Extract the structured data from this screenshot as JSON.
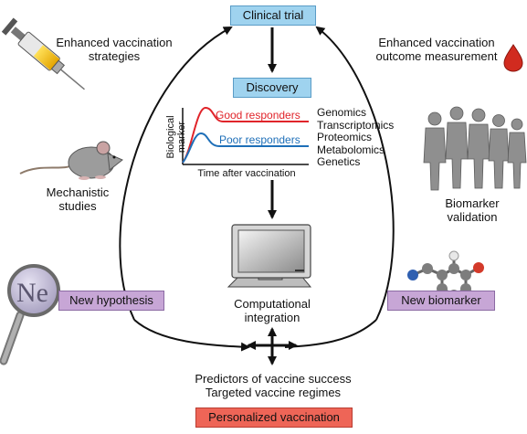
{
  "boxes": {
    "clinical_trial": "Clinical trial",
    "discovery": "Discovery",
    "new_hypothesis": "New hypothesis",
    "new_biomarker": "New biomarker",
    "personalized": "Personalized vaccination"
  },
  "labels": {
    "enhanced_strategies_1": "Enhanced vaccination",
    "enhanced_strategies_2": "strategies",
    "enhanced_outcome_1": "Enhanced vaccination",
    "enhanced_outcome_2": "outcome measurement",
    "mechanistic_1": "Mechanistic",
    "mechanistic_2": "studies",
    "biomarker_val_1": "Biomarker",
    "biomarker_val_2": "validation",
    "computational_1": "Computational",
    "computational_2": "integration",
    "predictors_1": "Predictors of vaccine success",
    "predictors_2": "Targeted vaccine regimes"
  },
  "omics": [
    "Genomics",
    "Transcriptomics",
    "Proteomics",
    "Metabolomics",
    "Genetics"
  ],
  "chart": {
    "y_label_1": "Biological",
    "y_label_2": "marker",
    "x_label": "Time after vaccination",
    "good": "Good responders",
    "poor": "Poor responders",
    "good_color": "#e0242a",
    "poor_color": "#1e6fb8"
  },
  "magnifier_text": "Ne"
}
